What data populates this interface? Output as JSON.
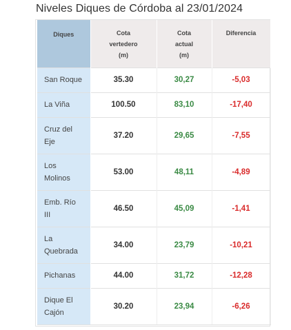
{
  "title": "Niveles Diques de Córdoba al 23/01/2024",
  "colors": {
    "name_header_bg": "#aec8dd",
    "name_cell_bg": "#d6e8f7",
    "header_bg": "#efebeb",
    "actual_color": "#3a8a44",
    "diff_color": "#d92a2a"
  },
  "chart_data": {
    "type": "table",
    "title": "Niveles Diques de Córdoba al 23/01/2024",
    "columns": [
      {
        "lines": [
          "Diques"
        ]
      },
      {
        "lines": [
          "Cota",
          "vertedero",
          "(m)"
        ]
      },
      {
        "lines": [
          "Cota",
          "actual",
          "(m)"
        ]
      },
      {
        "lines": [
          "Diferencia"
        ]
      }
    ],
    "rows": [
      {
        "name_lines": [
          "San Roque"
        ],
        "vertedero": "35.30",
        "actual": "30,27",
        "diferencia": "-5,03"
      },
      {
        "name_lines": [
          "La Viña"
        ],
        "vertedero": "100.50",
        "actual": "83,10",
        "diferencia": "-17,40"
      },
      {
        "name_lines": [
          "Cruz del",
          "Eje"
        ],
        "vertedero": "37.20",
        "actual": "29,65",
        "diferencia": "-7,55"
      },
      {
        "name_lines": [
          "Los",
          "Molinos"
        ],
        "vertedero": "53.00",
        "actual": "48,11",
        "diferencia": "-4,89"
      },
      {
        "name_lines": [
          "Emb. Río",
          "III"
        ],
        "vertedero": "46.50",
        "actual": "45,09",
        "diferencia": "-1,41"
      },
      {
        "name_lines": [
          "La",
          "Quebrada"
        ],
        "vertedero": "34.00",
        "actual": "23,79",
        "diferencia": "-10,21"
      },
      {
        "name_lines": [
          "Pichanas"
        ],
        "vertedero": "44.00",
        "actual": "31,72",
        "diferencia": "-12,28"
      },
      {
        "name_lines": [
          "Dique El",
          "Cajón"
        ],
        "vertedero": "30.20",
        "actual": "23,94",
        "diferencia": "-6,26"
      }
    ]
  }
}
